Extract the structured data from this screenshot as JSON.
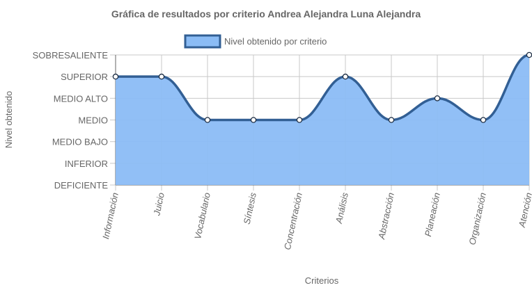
{
  "chart_data": {
    "type": "area",
    "title": "Gráfica de resultados por criterio Andrea Alejandra Luna Alejandra",
    "xlabel": "Criterios",
    "ylabel": "Nivel obtenido",
    "categories": [
      "Información",
      "Juicio",
      "Vocabulario",
      "Síntesis",
      "Concentración",
      "Análisis",
      "Abstracción",
      "Planeación",
      "Organización",
      "Atención"
    ],
    "y_levels": [
      "DEFICIENTE",
      "INFERIOR",
      "MEDIO BAJO",
      "MEDIO",
      "MEDIO ALTO",
      "SUPERIOR",
      "SOBRESALIENTE"
    ],
    "ylim": [
      0,
      6
    ],
    "grid": true,
    "legend_position": "top",
    "series": [
      {
        "name": "Nivel obtenido por criterio",
        "values": [
          5,
          5,
          3,
          3,
          3,
          5,
          3,
          4,
          3,
          6
        ],
        "fill_color": "#8bbcf5",
        "line_color": "#325f94"
      }
    ],
    "colors": {
      "grid": "#c8c8c8",
      "axis": "#666666",
      "text": "#666666",
      "point_fill": "#ffffff"
    }
  }
}
